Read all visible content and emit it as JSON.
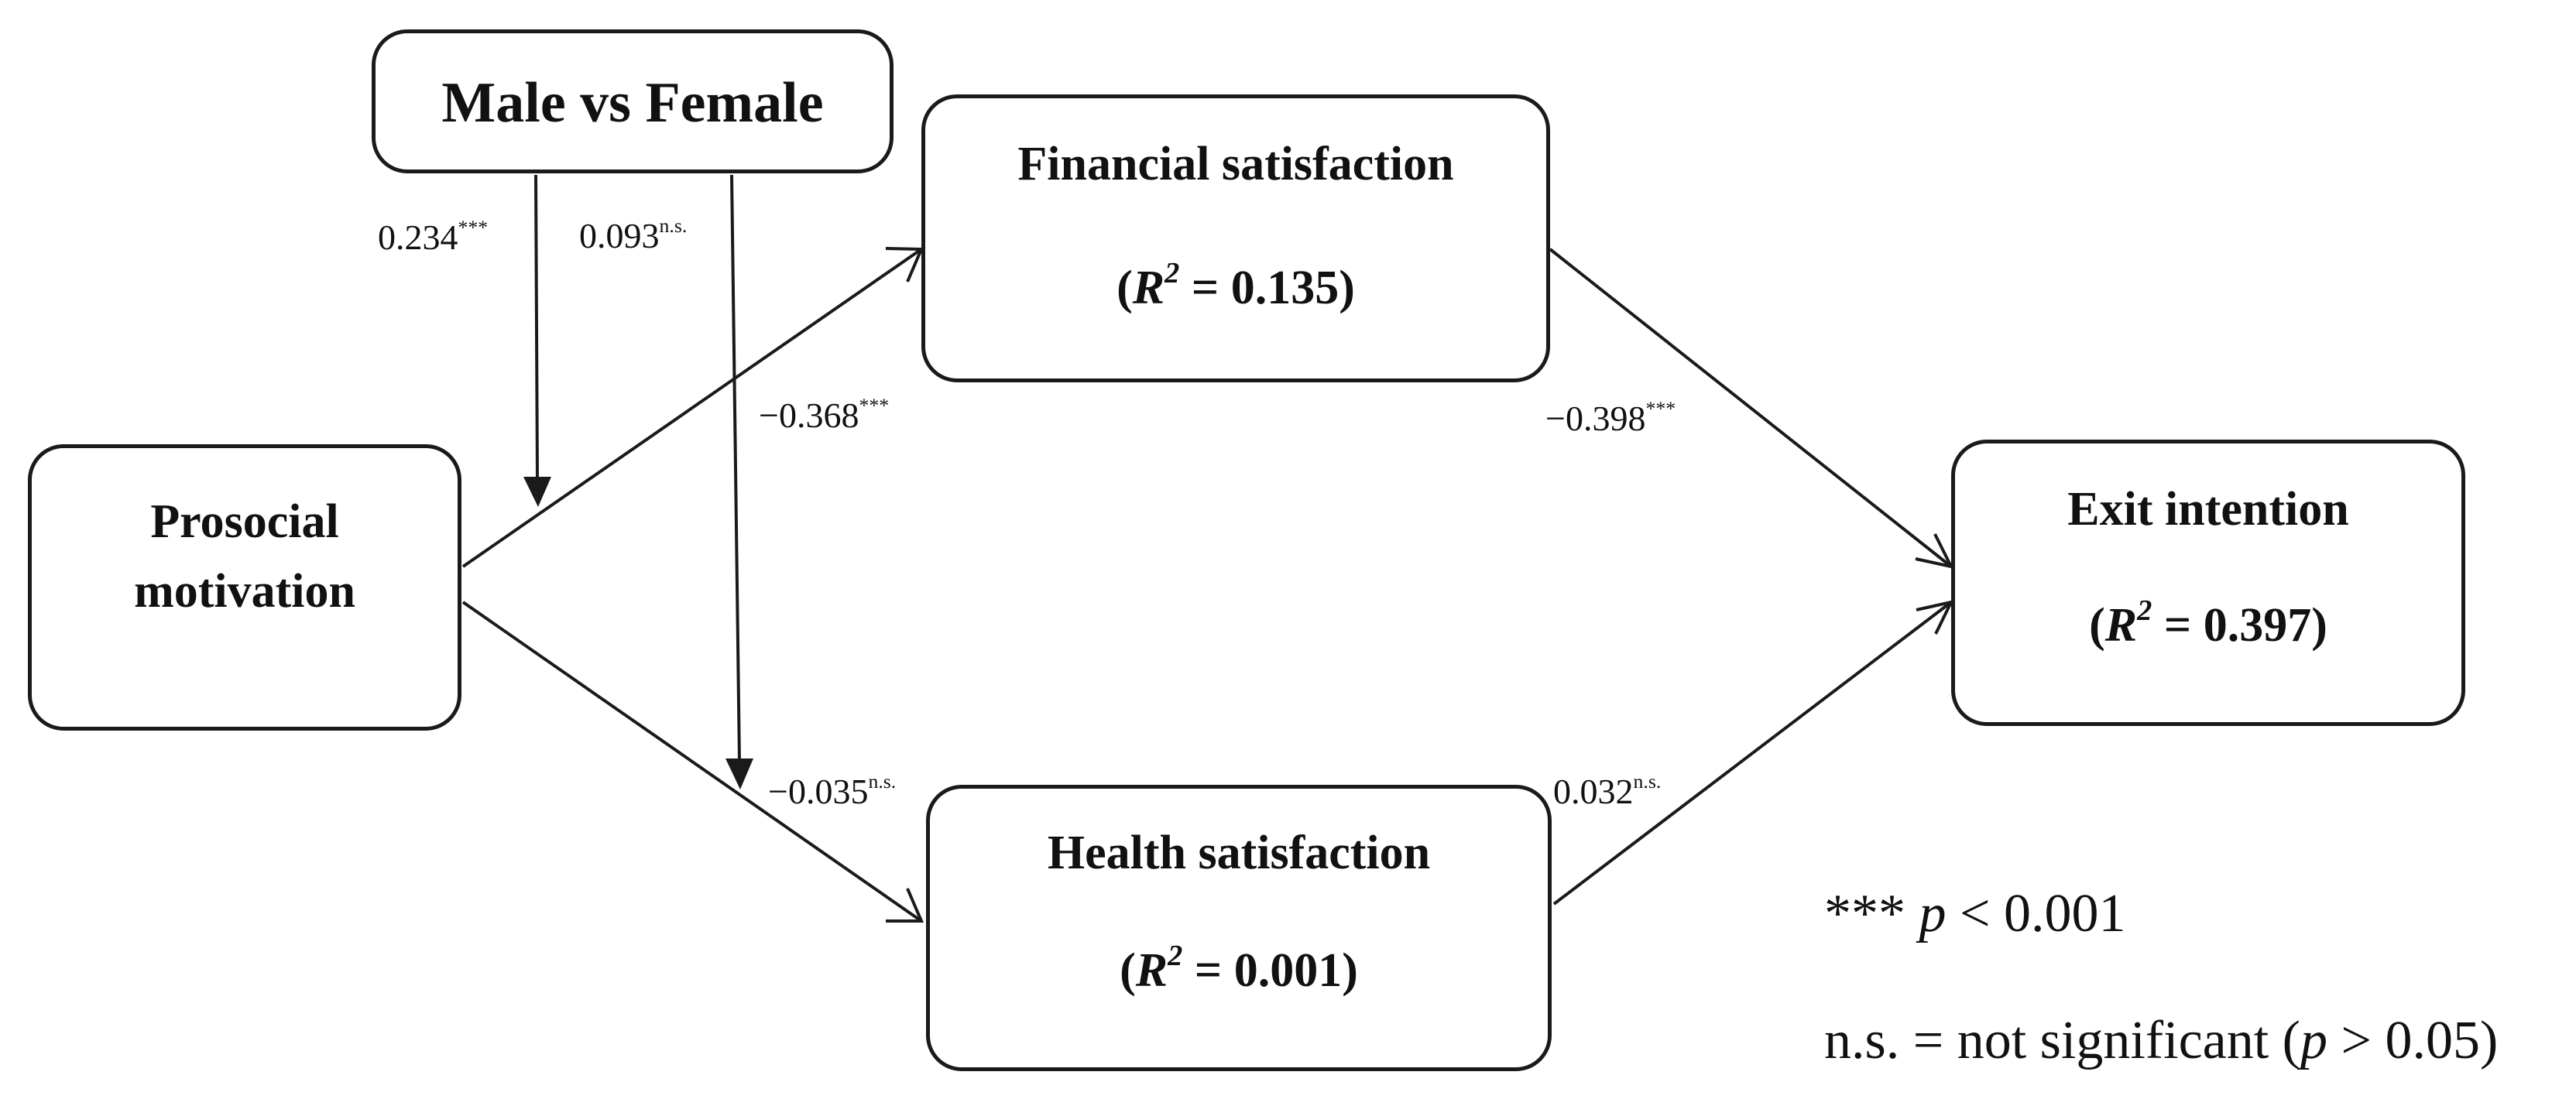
{
  "nodes": {
    "moderator": {
      "label": "Male vs Female"
    },
    "prosocial": {
      "line1": "Prosocial",
      "line2": "motivation"
    },
    "financial": {
      "label": "Financial satisfaction",
      "r2_open": "(",
      "r2_symbol": "R",
      "r2_exp": "2",
      "r2_rest": " = 0.135)"
    },
    "health": {
      "label": "Health satisfaction",
      "r2_open": "(",
      "r2_symbol": "R",
      "r2_exp": "2",
      "r2_rest": " = 0.001)"
    },
    "exit": {
      "label": "Exit intention",
      "r2_open": "(",
      "r2_symbol": "R",
      "r2_exp": "2",
      "r2_rest": " = 0.397)"
    }
  },
  "coefficients": {
    "mod_to_financial_path": {
      "value": "0.234",
      "sig": "***"
    },
    "mod_to_health_path": {
      "value": "0.093",
      "sig": "n.s."
    },
    "prosocial_to_financial": {
      "value": "−0.368",
      "sig": "***"
    },
    "prosocial_to_health": {
      "value": "−0.035",
      "sig": "n.s."
    },
    "financial_to_exit": {
      "value": "−0.398",
      "sig": "***"
    },
    "health_to_exit": {
      "value": "0.032",
      "sig": "n.s."
    }
  },
  "legend": {
    "line1_stars": "***",
    "line1_p": "p",
    "line1_rest": " < 0.001",
    "line2_pre": "n.s. = not significant (",
    "line2_p": "p",
    "line2_post": " > 0.05)"
  }
}
